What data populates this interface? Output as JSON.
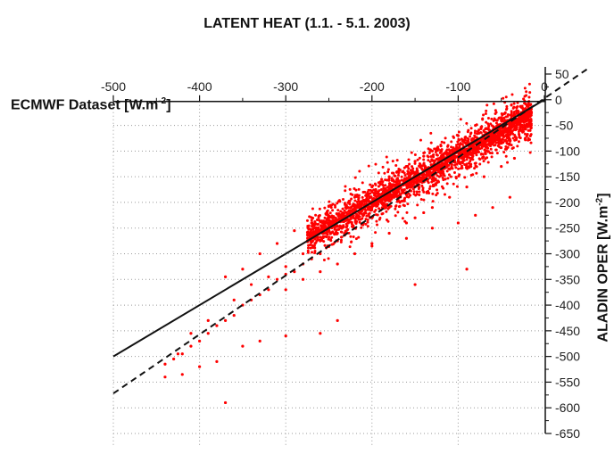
{
  "chart_data": {
    "type": "scatter",
    "title": "LATENT HEAT (1.1. - 5.1. 2003)",
    "xlabel": "ECMWF Dataset [W.m",
    "xlabel_sup": "-2",
    "xlabel_end": "]",
    "ylabel": "ALADIN OPER [W.m",
    "ylabel_sup": "-2",
    "ylabel_end": "]",
    "x_axis_position": "top",
    "y_axis_position": "right",
    "xlim": [
      -500,
      0
    ],
    "ylim": [
      -650,
      50
    ],
    "x_ticks": [
      -500,
      -400,
      -300,
      -200,
      -100,
      0
    ],
    "y_ticks": [
      50,
      0,
      -50,
      -100,
      -150,
      -200,
      -250,
      -300,
      -350,
      -400,
      -450,
      -500,
      -550,
      -600,
      -650
    ],
    "grid": true,
    "series": [
      {
        "kind": "points",
        "color": "#ff0000",
        "points": [
          [
            -20,
            -25
          ],
          [
            -30,
            -40
          ],
          [
            -40,
            -50
          ],
          [
            -50,
            -55
          ],
          [
            -60,
            -75
          ],
          [
            -70,
            -80
          ],
          [
            -80,
            -100
          ],
          [
            -90,
            -105
          ],
          [
            -100,
            -120
          ],
          [
            -110,
            -135
          ],
          [
            -120,
            -140
          ],
          [
            -130,
            -155
          ],
          [
            -140,
            -160
          ],
          [
            -150,
            -170
          ],
          [
            -160,
            -185
          ],
          [
            -170,
            -190
          ],
          [
            -180,
            -210
          ],
          [
            -190,
            -215
          ],
          [
            -200,
            -230
          ],
          [
            -210,
            -240
          ],
          [
            -220,
            -250
          ],
          [
            -230,
            -260
          ],
          [
            -240,
            -275
          ],
          [
            -250,
            -285
          ],
          [
            -260,
            -300
          ],
          [
            -270,
            -310
          ],
          [
            -280,
            -320
          ],
          [
            -290,
            -335
          ],
          [
            -300,
            -340
          ],
          [
            -310,
            -350
          ],
          [
            -320,
            -370
          ],
          [
            -330,
            -380
          ],
          [
            -340,
            -390
          ],
          [
            -350,
            -400
          ],
          [
            -360,
            -420
          ],
          [
            -370,
            -430
          ],
          [
            -380,
            -440
          ],
          [
            -390,
            -455
          ],
          [
            -400,
            -470
          ],
          [
            -410,
            -480
          ],
          [
            -420,
            -495
          ],
          [
            -430,
            -505
          ],
          [
            -440,
            -515
          ],
          [
            -370,
            -590
          ],
          [
            -425,
            -495
          ],
          [
            -410,
            -455
          ],
          [
            -390,
            -430
          ],
          [
            -360,
            -390
          ],
          [
            -340,
            -360
          ],
          [
            -320,
            -345
          ],
          [
            -300,
            -325
          ],
          [
            -280,
            -300
          ],
          [
            -260,
            -275
          ],
          [
            -240,
            -260
          ],
          [
            -200,
            -210
          ],
          [
            -180,
            -190
          ],
          [
            -160,
            -165
          ],
          [
            -140,
            -145
          ],
          [
            -120,
            -120
          ],
          [
            -100,
            -100
          ],
          [
            -80,
            -80
          ],
          [
            -60,
            -60
          ],
          [
            -40,
            -40
          ],
          [
            -25,
            -30
          ],
          [
            -150,
            -230
          ],
          [
            -130,
            -210
          ],
          [
            -110,
            -190
          ],
          [
            -90,
            -170
          ],
          [
            -70,
            -150
          ],
          [
            -50,
            -130
          ],
          [
            -200,
            -280
          ],
          [
            -180,
            -260
          ],
          [
            -160,
            -240
          ],
          [
            -140,
            -220
          ],
          [
            -220,
            -190
          ],
          [
            -200,
            -170
          ],
          [
            -180,
            -150
          ],
          [
            -160,
            -130
          ],
          [
            -140,
            -110
          ],
          [
            -120,
            -90
          ],
          [
            -100,
            -70
          ],
          [
            -80,
            -50
          ],
          [
            -250,
            -230
          ],
          [
            -230,
            -210
          ],
          [
            -210,
            -180
          ],
          [
            -190,
            -160
          ],
          [
            -170,
            -140
          ],
          [
            -150,
            -120
          ],
          [
            -130,
            -100
          ],
          [
            -330,
            -300
          ],
          [
            -310,
            -280
          ],
          [
            -290,
            -255
          ],
          [
            -270,
            -240
          ],
          [
            -350,
            -330
          ],
          [
            -370,
            -345
          ],
          [
            -300,
            -370
          ],
          [
            -280,
            -350
          ],
          [
            -260,
            -335
          ],
          [
            -240,
            -320
          ],
          [
            -220,
            -300
          ],
          [
            -200,
            -285
          ],
          [
            -160,
            -270
          ],
          [
            -130,
            -250
          ],
          [
            -100,
            -240
          ],
          [
            -80,
            -225
          ],
          [
            -60,
            -210
          ],
          [
            -40,
            -190
          ],
          [
            -90,
            -330
          ],
          [
            -150,
            -360
          ],
          [
            -240,
            -430
          ],
          [
            -260,
            -455
          ],
          [
            -300,
            -460
          ],
          [
            -330,
            -470
          ],
          [
            -350,
            -480
          ],
          [
            -380,
            -510
          ],
          [
            -400,
            -520
          ],
          [
            -420,
            -535
          ],
          [
            -440,
            -540
          ]
        ]
      },
      {
        "kind": "line",
        "name": "",
        "style": "solid",
        "color": "#111111",
        "from": [
          -500,
          -500
        ],
        "to": [
          0,
          0
        ]
      },
      {
        "kind": "line",
        "name": "",
        "style": "dashed",
        "color": "#111111",
        "from": [
          -500,
          -572
        ],
        "to": [
          50,
          60
        ]
      }
    ]
  }
}
